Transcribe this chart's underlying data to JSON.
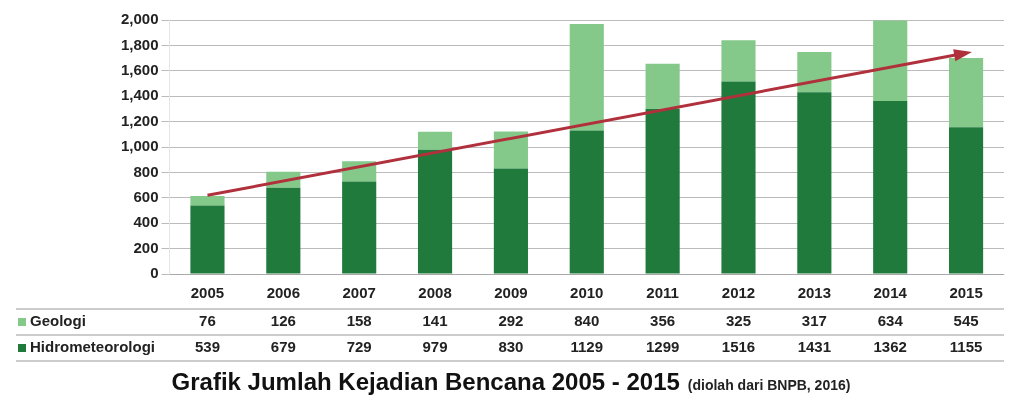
{
  "chart_data": {
    "type": "bar",
    "stacked": true,
    "title": "Grafik Jumlah Kejadian Bencana 2005 - 2015",
    "annotations": [
      "(diolah dari BNPB, 2016)"
    ],
    "categories": [
      "2005",
      "2006",
      "2007",
      "2008",
      "2009",
      "2010",
      "2011",
      "2012",
      "2013",
      "2014",
      "2015"
    ],
    "series": [
      {
        "name": "Hidrometeorologi",
        "color": "#1f7a3c",
        "values": [
          539,
          679,
          729,
          979,
          830,
          1129,
          1299,
          1516,
          1431,
          1362,
          1155
        ]
      },
      {
        "name": "Geologi",
        "color": "#84c98a",
        "values": [
          76,
          126,
          158,
          141,
          292,
          840,
          356,
          325,
          317,
          634,
          545
        ]
      }
    ],
    "ylim": [
      0,
      2000
    ],
    "yticks": [
      {
        "value": 0,
        "label": "0"
      },
      {
        "value": 200,
        "label": "200"
      },
      {
        "value": 400,
        "label": "400"
      },
      {
        "value": 600,
        "label": "600"
      },
      {
        "value": 800,
        "label": "800"
      },
      {
        "value": 1000,
        "label": "1,000"
      },
      {
        "value": 1200,
        "label": "1,200"
      },
      {
        "value": 1400,
        "label": "1,400"
      },
      {
        "value": 1600,
        "label": "1,600"
      },
      {
        "value": 1800,
        "label": "1,800"
      },
      {
        "value": 2000,
        "label": "2,000"
      }
    ],
    "grid": "y",
    "legend": "bottom",
    "data_labels": true
  }
}
